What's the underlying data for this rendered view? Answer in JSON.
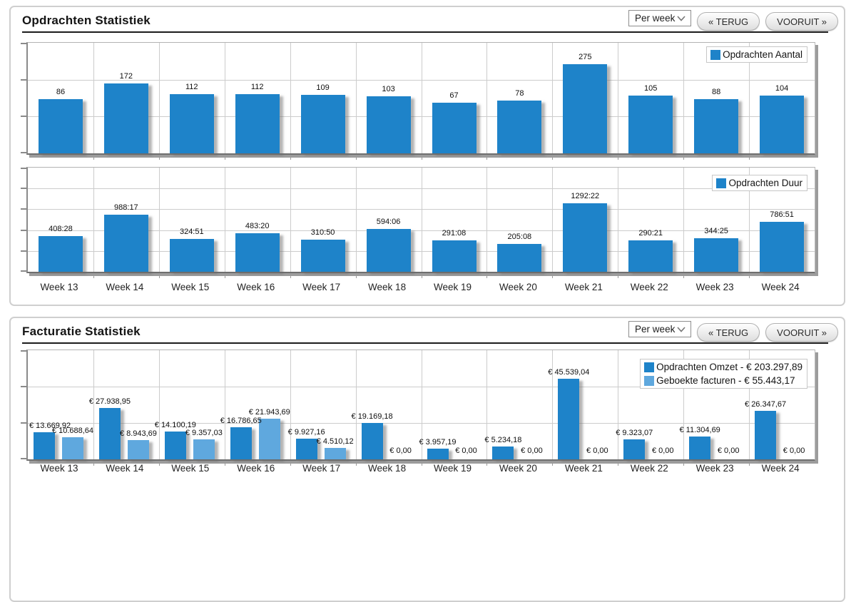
{
  "weeks": [
    "Week 13",
    "Week 14",
    "Week 15",
    "Week 16",
    "Week 17",
    "Week 18",
    "Week 19",
    "Week 20",
    "Week 21",
    "Week 22",
    "Week 23",
    "Week 24"
  ],
  "panels": [
    {
      "title": "Opdrachten Statistiek",
      "controls": {
        "period": "Per week",
        "back": "« TERUG",
        "forward": "VOORUIT »"
      }
    },
    {
      "title": "Facturatie Statistiek",
      "controls": {
        "period": "Per week",
        "back": "« TERUG",
        "forward": "VOORUIT »"
      }
    }
  ],
  "colors": {
    "bar_dark": "#1e83c9",
    "bar_light": "#5fa8de",
    "gridline": "#cccccc",
    "axis": "#8a8a8a"
  },
  "chart_data": [
    {
      "type": "bar",
      "legend": "Opdrachten Aantal",
      "legend_position": "top-right",
      "grid": true,
      "categories": [
        "Week 13",
        "Week 14",
        "Week 15",
        "Week 16",
        "Week 17",
        "Week 18",
        "Week 19",
        "Week 20",
        "Week 21",
        "Week 22",
        "Week 23",
        "Week 24"
      ],
      "values": [
        86,
        172,
        112,
        112,
        109,
        103,
        67,
        78,
        275,
        105,
        88,
        104
      ]
    },
    {
      "type": "bar",
      "legend": "Opdrachten Duur",
      "legend_position": "top-right",
      "grid": true,
      "value_format": "hours:minutes",
      "categories": [
        "Week 13",
        "Week 14",
        "Week 15",
        "Week 16",
        "Week 17",
        "Week 18",
        "Week 19",
        "Week 20",
        "Week 21",
        "Week 22",
        "Week 23",
        "Week 24"
      ],
      "values": [
        "408:28",
        "988:17",
        "324:51",
        "483:20",
        "310:50",
        "594:06",
        "291:08",
        "205:08",
        "1292:22",
        "290:21",
        "344:25",
        "786:51"
      ]
    },
    {
      "type": "bar",
      "legend_position": "top-right",
      "grid": true,
      "value_format": "euro",
      "categories": [
        "Week 13",
        "Week 14",
        "Week 15",
        "Week 16",
        "Week 17",
        "Week 18",
        "Week 19",
        "Week 20",
        "Week 21",
        "Week 22",
        "Week 23",
        "Week 24"
      ],
      "series": [
        {
          "name": "Opdrachten Omzet - € 203.297,89",
          "color_key": "bar_dark",
          "bar_name": "omzet-bar",
          "values": [
            13669.92,
            27938.95,
            14100.19,
            16786.65,
            9927.16,
            19169.18,
            3957.19,
            5234.18,
            45539.04,
            9323.07,
            11304.69,
            26347.67
          ]
        },
        {
          "name": "Geboekte facturen - € 55.443,17",
          "color_key": "bar_light",
          "bar_name": "facturen-bar",
          "values": [
            10688.64,
            8943.69,
            9357.03,
            21943.69,
            4510.12,
            0,
            0,
            0,
            0,
            0,
            0,
            0
          ]
        }
      ]
    }
  ]
}
